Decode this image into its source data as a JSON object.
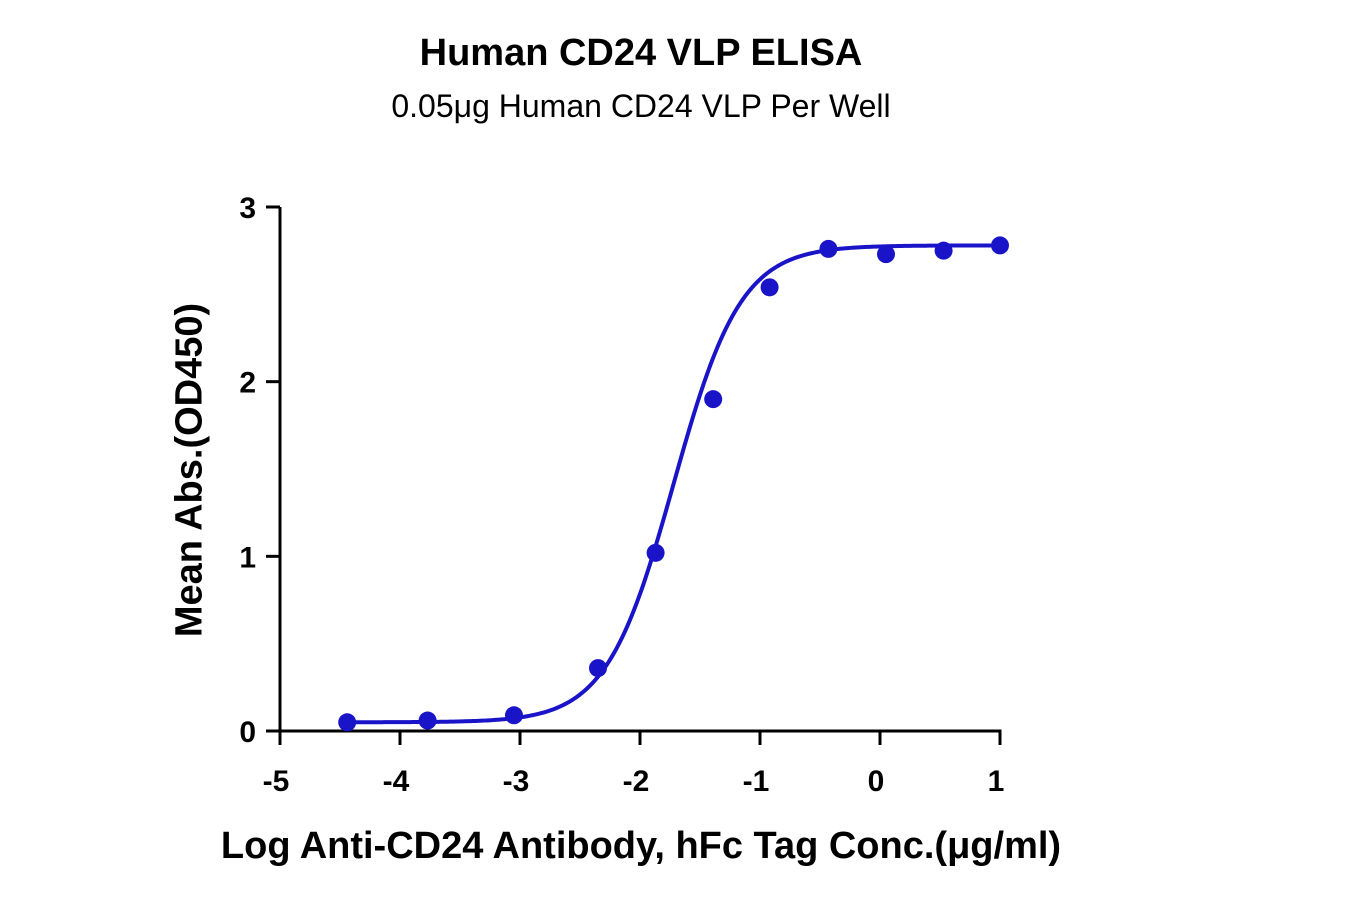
{
  "chart_data": {
    "type": "scatter",
    "title": "Human CD24 VLP ELISA",
    "subtitle": "0.05μg Human CD24 VLP Per Well",
    "xlabel": "Log Anti-CD24 Antibody, hFc Tag Conc.(μg/ml)",
    "ylabel": "Mean Abs.(OD450)",
    "xlim": [
      -5,
      1
    ],
    "ylim": [
      0,
      3
    ],
    "x_ticks": [
      "-5",
      "-4",
      "-3",
      "-2",
      "-1",
      "0",
      "1"
    ],
    "y_ticks": [
      "0",
      "1",
      "2",
      "3"
    ],
    "grid": false,
    "series": [
      {
        "x": [
          -4.44,
          -3.77,
          -3.05,
          -2.35,
          -1.87,
          -1.39,
          -0.92,
          -0.43,
          0.05,
          0.53,
          1.0
        ],
        "y": [
          0.05,
          0.06,
          0.09,
          0.36,
          1.02,
          1.9,
          2.54,
          2.76,
          2.73,
          2.75,
          2.78
        ],
        "color": "#1a14c8"
      }
    ],
    "fit_curve": {
      "type": "4PL",
      "bottom": 0.05,
      "top": 2.78,
      "log_ec50": -1.72,
      "hill_slope": 1.55,
      "color": "#1a14c8"
    }
  }
}
